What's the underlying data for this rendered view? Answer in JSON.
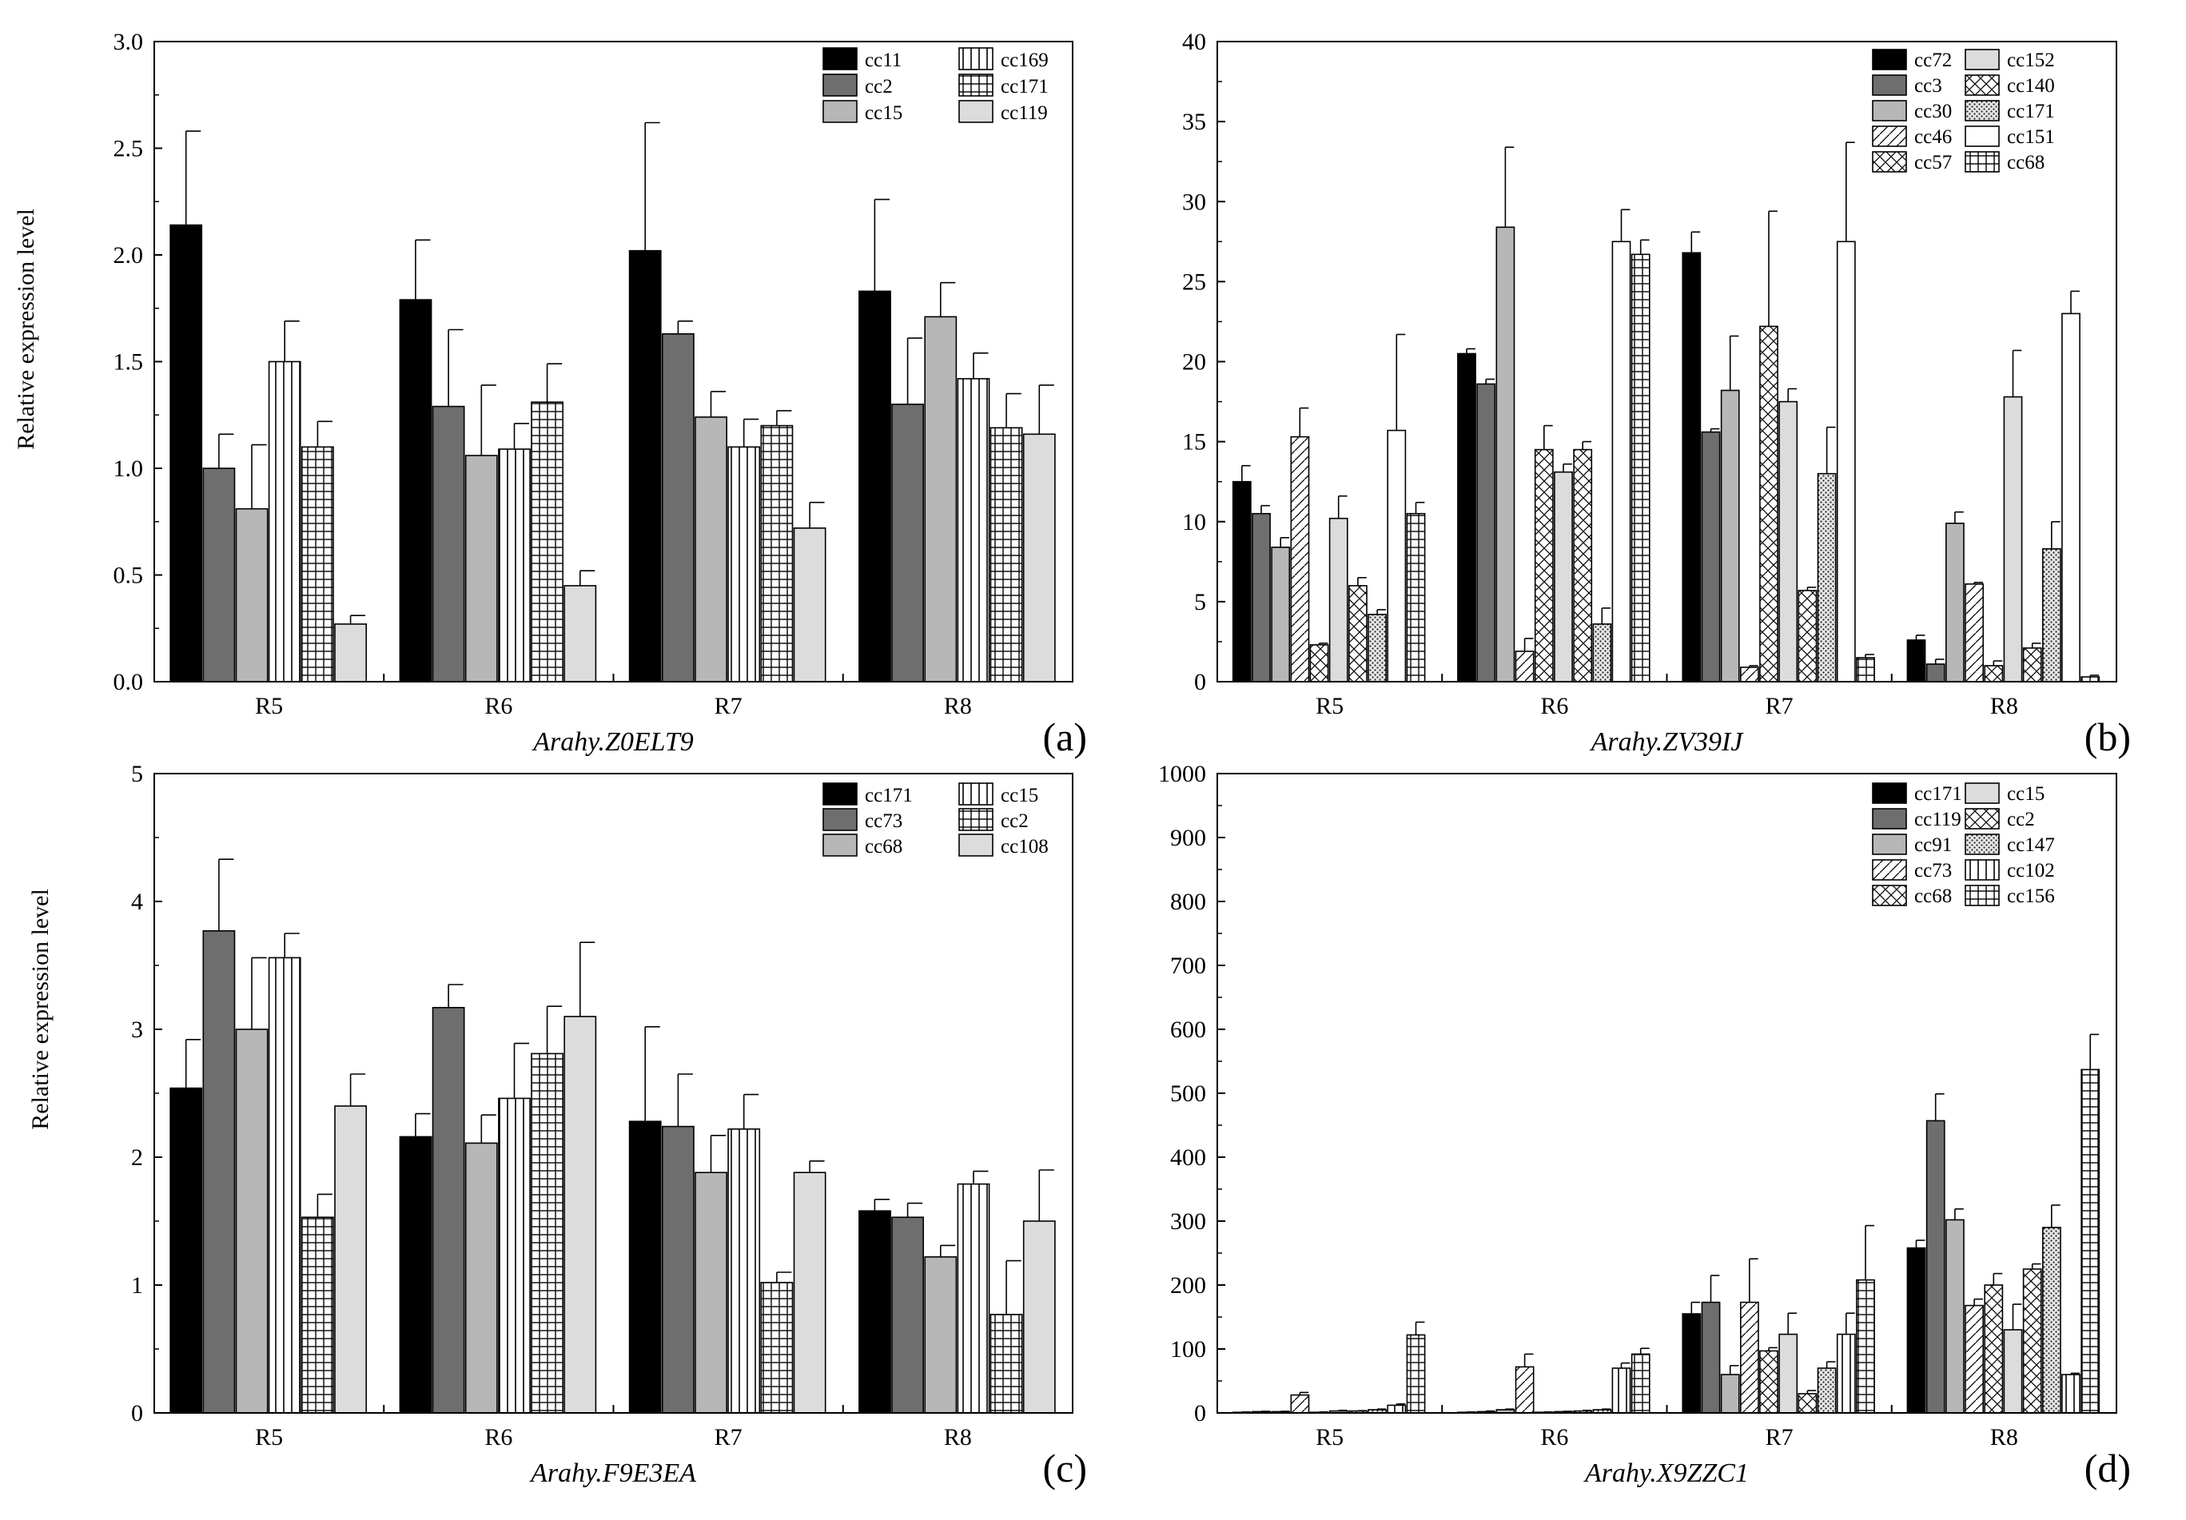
{
  "figure": {
    "ylabel": "Relative expression level"
  },
  "chart_data": [
    {
      "type": "bar",
      "panel_label": "(a)",
      "title": "Arahy.Z0ELT9",
      "xlabel": "Arahy.Z0ELT9",
      "ylabel": "Relative expression level",
      "ylim": [
        0,
        3
      ],
      "yticks": [
        0,
        0.5,
        1,
        1.5,
        2,
        2.5,
        3
      ],
      "ytick_labels": [
        "0.0",
        "0.5",
        "1.0",
        "1.5",
        "2.0",
        "2.5",
        "3.0"
      ],
      "categories": [
        "R5",
        "R6",
        "R7",
        "R8"
      ],
      "legend": {
        "position": "top-right",
        "columns": 2
      },
      "series": [
        {
          "name": "cc11",
          "pattern": "black",
          "values": [
            2.14,
            1.79,
            2.02,
            1.83
          ],
          "errors": [
            0.44,
            0.28,
            0.6,
            0.43
          ]
        },
        {
          "name": "cc2",
          "pattern": "darkgray",
          "values": [
            1.0,
            1.29,
            1.63,
            1.3
          ],
          "errors": [
            0.16,
            0.36,
            0.06,
            0.31
          ]
        },
        {
          "name": "cc15",
          "pattern": "midgray",
          "values": [
            0.81,
            1.06,
            1.24,
            1.71
          ],
          "errors": [
            0.3,
            0.33,
            0.12,
            0.16
          ]
        },
        {
          "name": "cc169",
          "pattern": "vlines",
          "values": [
            1.5,
            1.09,
            1.1,
            1.42
          ],
          "errors": [
            0.19,
            0.12,
            0.13,
            0.12
          ]
        },
        {
          "name": "cc171",
          "pattern": "grid",
          "values": [
            1.1,
            1.31,
            1.2,
            1.19
          ],
          "errors": [
            0.12,
            0.18,
            0.07,
            0.16
          ]
        },
        {
          "name": "cc119",
          "pattern": "lightgray",
          "values": [
            0.27,
            0.45,
            0.72,
            1.16
          ],
          "errors": [
            0.04,
            0.07,
            0.12,
            0.23
          ]
        }
      ]
    },
    {
      "type": "bar",
      "panel_label": "(b)",
      "title": "Arahy.ZV39IJ",
      "xlabel": "Arahy.ZV39IJ",
      "ylabel": "",
      "ylim": [
        0,
        40
      ],
      "yticks": [
        0,
        5,
        10,
        15,
        20,
        25,
        30,
        35,
        40
      ],
      "ytick_labels": [
        "0",
        "5",
        "10",
        "15",
        "20",
        "25",
        "30",
        "35",
        "40"
      ],
      "categories": [
        "R5",
        "R6",
        "R7",
        "R8"
      ],
      "legend": {
        "position": "top-right",
        "columns": 2
      },
      "series": [
        {
          "name": "cc72",
          "pattern": "black",
          "values": [
            12.5,
            20.5,
            26.8,
            2.6
          ],
          "errors": [
            1.0,
            0.3,
            1.3,
            0.3
          ]
        },
        {
          "name": "cc3",
          "pattern": "darkgray",
          "values": [
            10.5,
            18.6,
            15.6,
            1.1
          ],
          "errors": [
            0.5,
            0.3,
            0.2,
            0.3
          ]
        },
        {
          "name": "cc30",
          "pattern": "midgray",
          "values": [
            8.4,
            28.4,
            18.2,
            9.9
          ],
          "errors": [
            0.6,
            5.0,
            3.4,
            0.7
          ]
        },
        {
          "name": "cc46",
          "pattern": "diag",
          "values": [
            15.3,
            1.9,
            0.9,
            6.1
          ],
          "errors": [
            1.8,
            0.8,
            0.1,
            0.1
          ]
        },
        {
          "name": "cc57",
          "pattern": "xcross",
          "values": [
            2.3,
            14.5,
            22.2,
            1.0
          ],
          "errors": [
            0.1,
            1.5,
            7.2,
            0.3
          ]
        },
        {
          "name": "cc152",
          "pattern": "lightgray",
          "values": [
            10.2,
            13.1,
            17.5,
            17.8
          ],
          "errors": [
            1.4,
            0.5,
            0.8,
            2.9
          ]
        },
        {
          "name": "cc140",
          "pattern": "xcross",
          "values": [
            6.0,
            14.5,
            5.7,
            2.1
          ],
          "errors": [
            0.5,
            0.5,
            0.2,
            0.3
          ]
        },
        {
          "name": "cc171",
          "pattern": "dots",
          "values": [
            4.2,
            3.6,
            13.0,
            8.3
          ],
          "errors": [
            0.3,
            1.0,
            2.9,
            1.7
          ]
        },
        {
          "name": "cc151",
          "pattern": "white",
          "values": [
            15.7,
            27.5,
            27.5,
            23.0
          ],
          "errors": [
            6.0,
            2.0,
            6.2,
            1.4
          ]
        },
        {
          "name": "cc68",
          "pattern": "grid",
          "values": [
            10.5,
            26.7,
            1.5,
            0.3
          ],
          "errors": [
            0.7,
            0.9,
            0.2,
            0.1
          ]
        }
      ]
    },
    {
      "type": "bar",
      "panel_label": "(c)",
      "title": "Arahy.F9E3EA",
      "xlabel": "Arahy.F9E3EA",
      "ylabel": "Relative expression level",
      "ylim": [
        0,
        5
      ],
      "yticks": [
        0,
        1,
        2,
        3,
        4,
        5
      ],
      "ytick_labels": [
        "0",
        "1",
        "2",
        "3",
        "4",
        "5"
      ],
      "categories": [
        "R5",
        "R6",
        "R7",
        "R8"
      ],
      "legend": {
        "position": "top-right",
        "columns": 2
      },
      "series": [
        {
          "name": "cc171",
          "pattern": "black",
          "values": [
            2.54,
            2.16,
            2.28,
            1.58
          ],
          "errors": [
            0.38,
            0.18,
            0.74,
            0.09
          ]
        },
        {
          "name": "cc73",
          "pattern": "darkgray",
          "values": [
            3.77,
            3.17,
            2.24,
            1.53
          ],
          "errors": [
            0.56,
            0.18,
            0.41,
            0.11
          ]
        },
        {
          "name": "cc68",
          "pattern": "midgray",
          "values": [
            3.0,
            2.11,
            1.88,
            1.22
          ],
          "errors": [
            0.56,
            0.22,
            0.29,
            0.09
          ]
        },
        {
          "name": "cc15",
          "pattern": "vlines",
          "values": [
            3.56,
            2.46,
            2.22,
            1.79
          ],
          "errors": [
            0.19,
            0.43,
            0.27,
            0.1
          ]
        },
        {
          "name": "cc2",
          "pattern": "grid",
          "values": [
            1.53,
            2.81,
            1.02,
            0.77
          ],
          "errors": [
            0.18,
            0.37,
            0.08,
            0.42
          ]
        },
        {
          "name": "cc108",
          "pattern": "lightgray",
          "values": [
            2.4,
            3.1,
            1.88,
            1.5
          ],
          "errors": [
            0.25,
            0.58,
            0.09,
            0.4
          ]
        }
      ]
    },
    {
      "type": "bar",
      "panel_label": "(d)",
      "title": "Arahy.X9ZZC1",
      "xlabel": "Arahy.X9ZZC1",
      "ylabel": "",
      "ylim": [
        0,
        1000
      ],
      "yticks": [
        0,
        100,
        200,
        300,
        400,
        500,
        600,
        700,
        800,
        900,
        1000
      ],
      "ytick_labels": [
        "0",
        "100",
        "200",
        "300",
        "400",
        "500",
        "600",
        "700",
        "800",
        "900",
        "1000"
      ],
      "categories": [
        "R5",
        "R6",
        "R7",
        "R8"
      ],
      "legend": {
        "position": "top-right",
        "columns": 2
      },
      "series": [
        {
          "name": "cc171",
          "pattern": "black",
          "values": [
            1,
            1,
            155,
            258
          ],
          "errors": [
            0.5,
            0.5,
            18,
            12
          ]
        },
        {
          "name": "cc119",
          "pattern": "darkgray",
          "values": [
            2,
            2,
            173,
            457
          ],
          "errors": [
            0.5,
            1,
            42,
            42
          ]
        },
        {
          "name": "cc91",
          "pattern": "midgray",
          "values": [
            2,
            5,
            60,
            302
          ],
          "errors": [
            0.5,
            1,
            14,
            17
          ]
        },
        {
          "name": "cc73",
          "pattern": "diag",
          "values": [
            28,
            72,
            173,
            168
          ],
          "errors": [
            4,
            20,
            68,
            10
          ]
        },
        {
          "name": "cc68",
          "pattern": "xcross",
          "values": [
            1,
            1,
            97,
            200
          ],
          "errors": [
            0.5,
            0.5,
            5,
            18
          ]
        },
        {
          "name": "cc15",
          "pattern": "lightgray",
          "values": [
            3,
            2,
            123,
            130
          ],
          "errors": [
            1,
            0.5,
            33,
            40
          ]
        },
        {
          "name": "cc2",
          "pattern": "xcross",
          "values": [
            3,
            3,
            30,
            225
          ],
          "errors": [
            0.5,
            1,
            5,
            8
          ]
        },
        {
          "name": "cc147",
          "pattern": "dots",
          "values": [
            5,
            5,
            70,
            290
          ],
          "errors": [
            1,
            1,
            10,
            35
          ]
        },
        {
          "name": "cc102",
          "pattern": "vlines",
          "values": [
            12,
            70,
            123,
            60
          ],
          "errors": [
            2,
            8,
            33,
            2
          ]
        },
        {
          "name": "cc156",
          "pattern": "grid",
          "values": [
            122,
            92,
            208,
            537
          ],
          "errors": [
            20,
            9,
            85,
            55
          ]
        }
      ]
    }
  ]
}
